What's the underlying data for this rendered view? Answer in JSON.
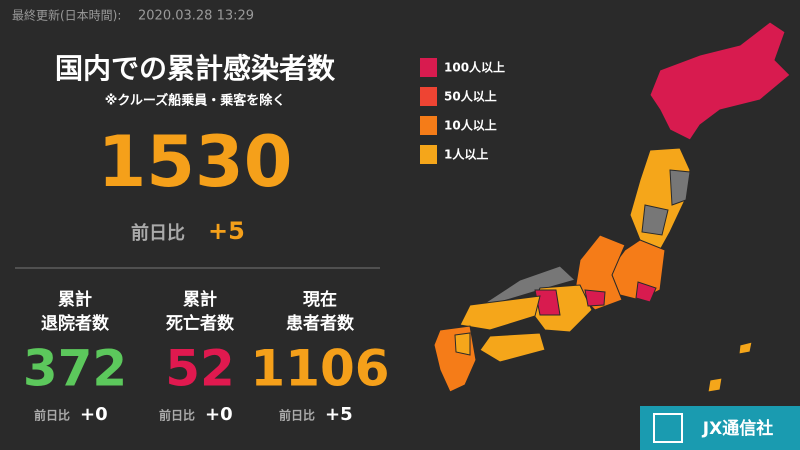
{
  "header": {
    "updated_label": "最終更新(日本時間):",
    "updated_at": "2020.03.28 13:29"
  },
  "total": {
    "title": "国内での累計感染者数",
    "note": "※クルーズ船乗員・乗客を除く",
    "value": 1530,
    "diff_label": "前日比",
    "diff": "+5",
    "color": "#f5a01a"
  },
  "stats": [
    {
      "label_lines": [
        "累計",
        "退院者数"
      ],
      "value": 372,
      "diff_label": "前日比",
      "diff": "+0",
      "color": "#5cc85c"
    },
    {
      "label_lines": [
        "累計",
        "死亡者数"
      ],
      "value": 52,
      "diff_label": "前日比",
      "diff": "+0",
      "color": "#e0194f"
    },
    {
      "label_lines": [
        "現在",
        "患者者数"
      ],
      "value": 1106,
      "diff_label": "前日比",
      "diff": "+5",
      "color": "#f5a01a"
    }
  ],
  "legend": [
    {
      "label": "100人以上",
      "color": "#d81b4f"
    },
    {
      "label": "50人以上",
      "color": "#ee4433"
    },
    {
      "label": "10人以上",
      "color": "#f57c18"
    },
    {
      "label": "1人以上",
      "color": "#f5a61a"
    }
  ],
  "brand": "JX通信社"
}
